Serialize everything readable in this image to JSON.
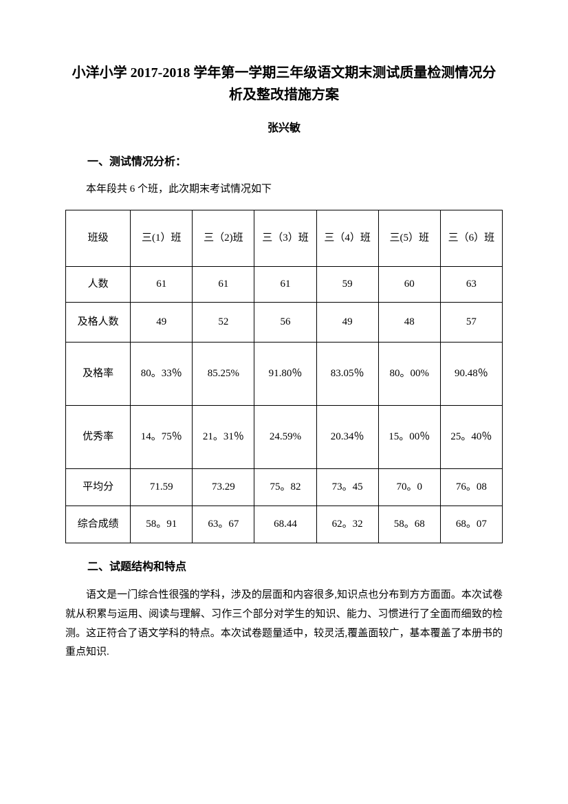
{
  "title": "小洋小学 2017-2018 学年第一学期三年级语文期末测试质量检测情况分析及整改措施方案",
  "author": "张兴敏",
  "section1_heading": "一、测试情况分析：",
  "intro": "本年段共 6 个班，此次期末考试情况如下",
  "table": {
    "columns": [
      "班级",
      "三(1）班",
      "三（2)班",
      "三（3）班",
      "三（4）班",
      "三(5）班",
      "三（6）班"
    ],
    "rows": [
      {
        "label": "人数",
        "values": [
          "61",
          "61",
          "61",
          "59",
          "60",
          "63"
        ]
      },
      {
        "label": "及格人数",
        "values": [
          "49",
          "52",
          "56",
          "49",
          "48",
          "57"
        ]
      },
      {
        "label": "及格率",
        "values": [
          "80。33％",
          "85.25%",
          "91.80％",
          "83.05％",
          "80。00%",
          "90.48％"
        ]
      },
      {
        "label": "优秀率",
        "values": [
          "14。75％",
          "21。31％",
          "24.59%",
          "20.34％",
          "15。00％",
          "25。40％"
        ]
      },
      {
        "label": "平均分",
        "values": [
          "71.59",
          "73.29",
          "75。82",
          "73。45",
          "70。0",
          "76。08"
        ]
      },
      {
        "label": "综合成绩",
        "values": [
          "58。91",
          "63。67",
          "68.44",
          "62。32",
          "58。68",
          "68。07"
        ]
      }
    ]
  },
  "section2_heading": "二、试题结构和特点",
  "body_text": "语文是一门综合性很强的学科，涉及的层面和内容很多,知识点也分布到方方面面。本次试卷就从积累与运用、阅读与理解、习作三个部分对学生的知识、能力、习惯进行了全面而细致的检测。这正符合了语文学科的特点。本次试卷题量适中，较灵活,覆盖面较广，基本覆盖了本册书的重点知识."
}
